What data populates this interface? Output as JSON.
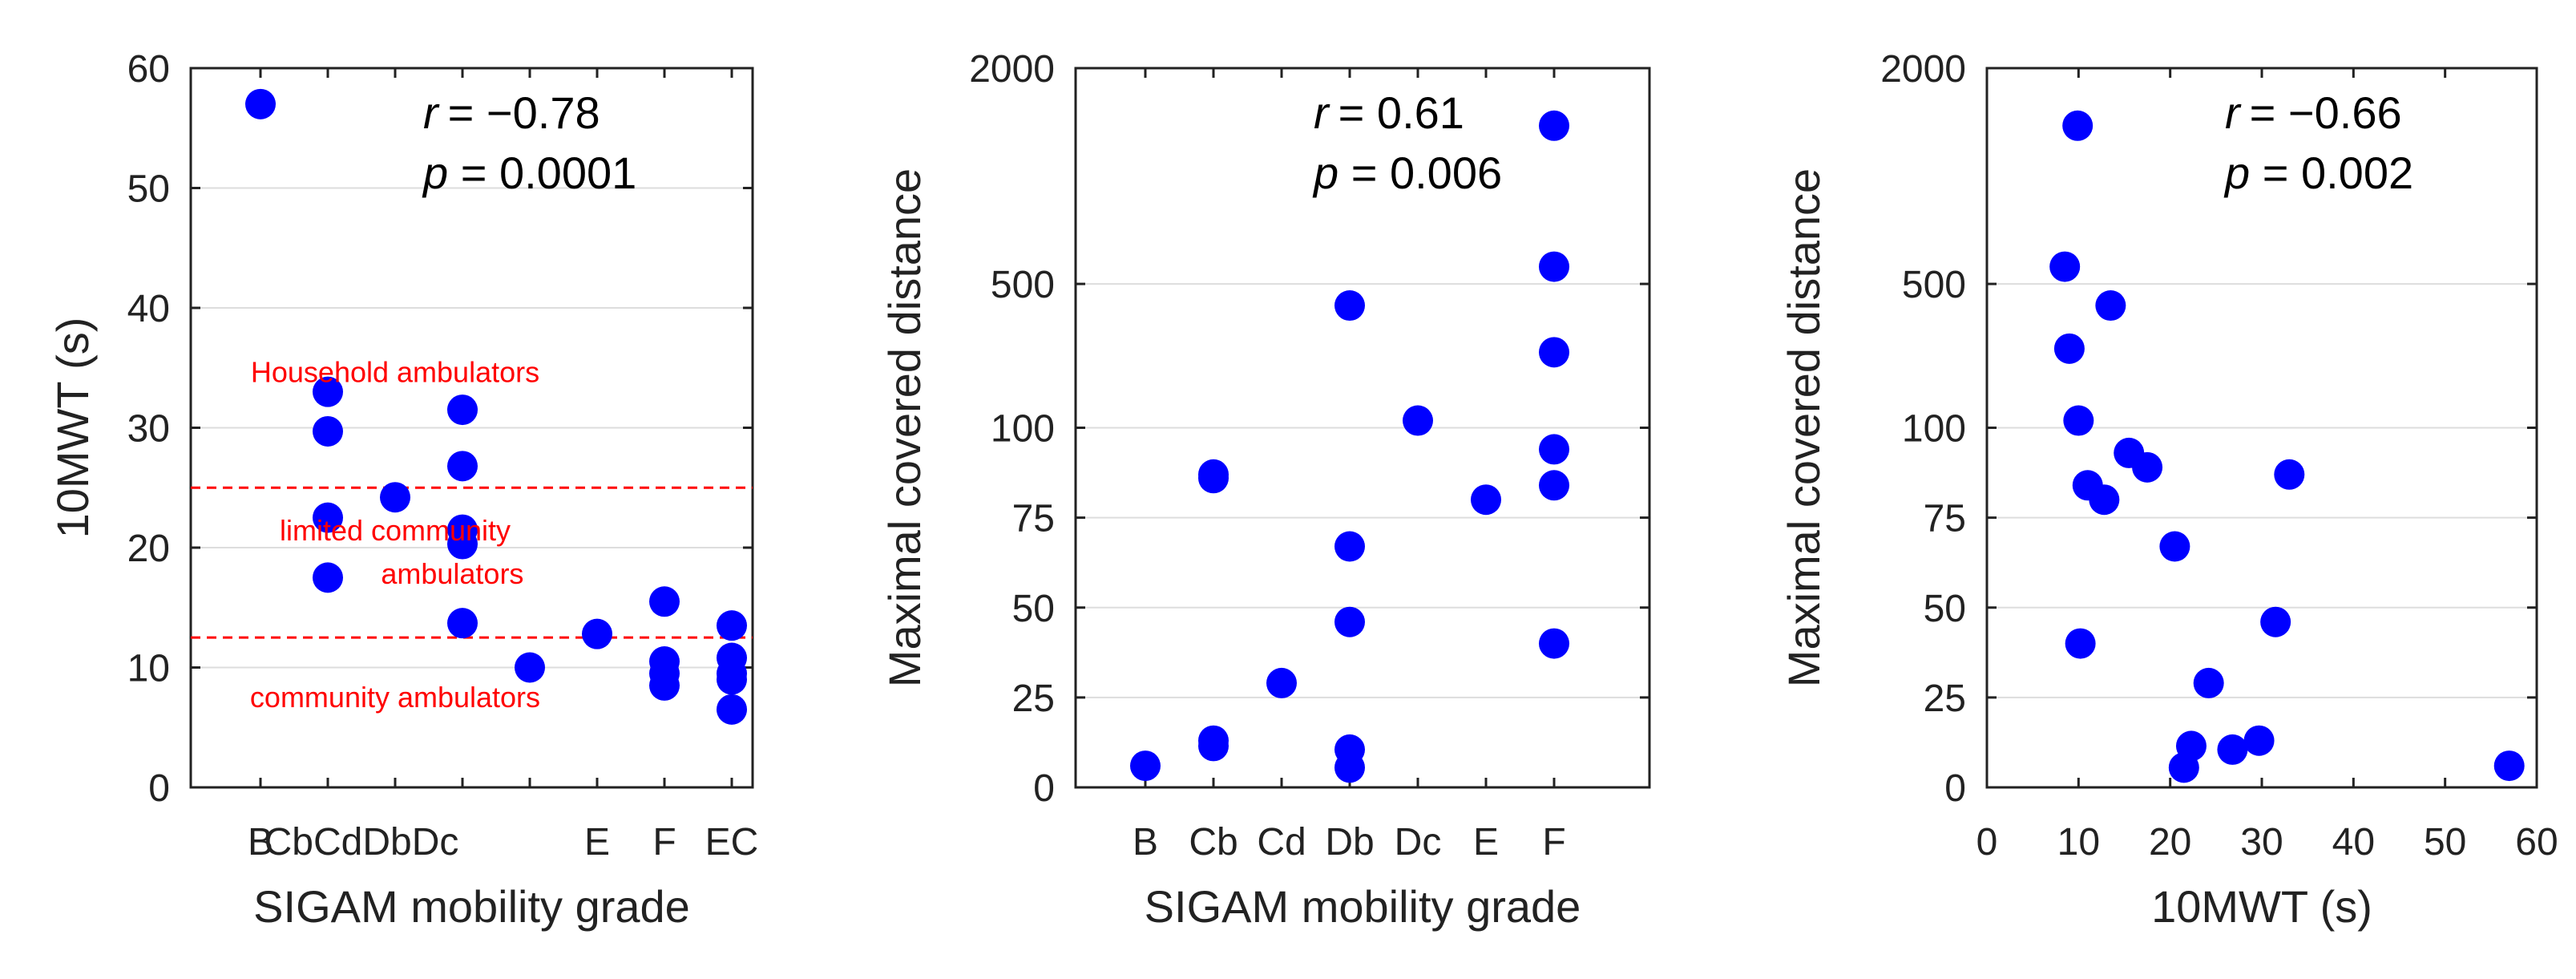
{
  "colors": {
    "point": "#0000ff",
    "threshold": "#ff0000",
    "grid": "#dddddd",
    "axis": "#222222"
  },
  "chart_data": [
    {
      "type": "scatter",
      "xlabel": "SIGAM mobility grade",
      "ylabel": "10MWT (s)",
      "categories": [
        "B",
        "Cb",
        "Cd",
        "Db",
        "Dc",
        "E",
        "F",
        "EC"
      ],
      "category_labels": [
        {
          "index": 0,
          "text": "B"
        },
        {
          "index": 1.5,
          "text": "CbCdDbDc"
        },
        {
          "index": 5,
          "text": "E"
        },
        {
          "index": 6,
          "text": "F"
        },
        {
          "index": 7,
          "text": "EC"
        }
      ],
      "yscale": "linear",
      "ylim": [
        0,
        60
      ],
      "yticks": [
        0,
        10,
        20,
        30,
        40,
        50,
        60
      ],
      "ytick_labels": [
        "0",
        "10",
        "20",
        "30",
        "40",
        "50",
        "60"
      ],
      "stats": {
        "r_symbol": "r",
        "r_value": "= −0.78",
        "p_symbol": "p",
        "p_value": " = 0.0001"
      },
      "thresholds": [
        25,
        12.5
      ],
      "annotations": [
        {
          "text": "Household ambulators",
          "x": 2.0,
          "y": 34.6
        },
        {
          "text": "limited community",
          "x": 2.0,
          "y": 21.4
        },
        {
          "text": "ambulators",
          "x": 2.85,
          "y": 17.8
        },
        {
          "text": "community ambulators",
          "x": 2.0,
          "y": 7.5
        }
      ],
      "points": [
        {
          "x": 0,
          "y": 57
        },
        {
          "x": 1,
          "y": 33
        },
        {
          "x": 1,
          "y": 29.7
        },
        {
          "x": 1,
          "y": 22.5
        },
        {
          "x": 1,
          "y": 17.5
        },
        {
          "x": 2,
          "y": 24.2
        },
        {
          "x": 3,
          "y": 31.5
        },
        {
          "x": 3,
          "y": 26.8
        },
        {
          "x": 3,
          "y": 21.5
        },
        {
          "x": 3,
          "y": 20.3
        },
        {
          "x": 3,
          "y": 13.7
        },
        {
          "x": 4,
          "y": 10
        },
        {
          "x": 5,
          "y": 12.8
        },
        {
          "x": 6,
          "y": 15.5
        },
        {
          "x": 6,
          "y": 10.5
        },
        {
          "x": 6,
          "y": 9.5
        },
        {
          "x": 6,
          "y": 8.5
        },
        {
          "x": 7,
          "y": 13.5
        },
        {
          "x": 7,
          "y": 10.8
        },
        {
          "x": 7,
          "y": 9.5
        },
        {
          "x": 7,
          "y": 9
        },
        {
          "x": 7,
          "y": 6.5
        }
      ]
    },
    {
      "type": "scatter",
      "xlabel": "SIGAM mobility grade",
      "ylabel": "Maximal covered distance",
      "categories": [
        "B",
        "Cb",
        "Cd",
        "Db",
        "Dc",
        "E",
        "F"
      ],
      "yscale": "piecewise",
      "ylim": [
        0,
        2000
      ],
      "yticks": [
        0,
        25,
        50,
        75,
        100,
        500,
        2000
      ],
      "ytick_labels": [
        "0",
        "25",
        "50",
        "75",
        "100",
        "500",
        "2000"
      ],
      "stats": {
        "r_symbol": "r",
        "r_value": "= 0.61",
        "p_symbol": "p",
        "p_value": " = 0.006"
      },
      "points": [
        {
          "x": 0,
          "y": 6
        },
        {
          "x": 1,
          "y": 87
        },
        {
          "x": 1,
          "y": 86
        },
        {
          "x": 1,
          "y": 13
        },
        {
          "x": 1,
          "y": 11.5
        },
        {
          "x": 2,
          "y": 29
        },
        {
          "x": 3,
          "y": 440
        },
        {
          "x": 3,
          "y": 67
        },
        {
          "x": 3,
          "y": 46
        },
        {
          "x": 3,
          "y": 10.5
        },
        {
          "x": 3,
          "y": 5.5
        },
        {
          "x": 4,
          "y": 120
        },
        {
          "x": 5,
          "y": 80
        },
        {
          "x": 6,
          "y": 1600
        },
        {
          "x": 6,
          "y": 620
        },
        {
          "x": 6,
          "y": 310
        },
        {
          "x": 6,
          "y": 94
        },
        {
          "x": 6,
          "y": 84
        },
        {
          "x": 6,
          "y": 40
        }
      ]
    },
    {
      "type": "scatter",
      "xlabel": "10MWT (s)",
      "ylabel": "Maximal covered distance",
      "xlim": [
        0,
        60
      ],
      "xticks": [
        0,
        10,
        20,
        30,
        40,
        50,
        60
      ],
      "xtick_labels": [
        "0",
        "10",
        "20",
        "30",
        "40",
        "50",
        "60"
      ],
      "yscale": "piecewise",
      "ylim": [
        0,
        2000
      ],
      "yticks": [
        0,
        25,
        50,
        75,
        100,
        500,
        2000
      ],
      "ytick_labels": [
        "0",
        "25",
        "50",
        "75",
        "100",
        "500",
        "2000"
      ],
      "stats": {
        "r_symbol": "r",
        "r_value": "= −0.66",
        "p_symbol": "p",
        "p_value": " = 0.002"
      },
      "points": [
        {
          "x": 9.9,
          "y": 1600
        },
        {
          "x": 8.5,
          "y": 620
        },
        {
          "x": 13.5,
          "y": 440
        },
        {
          "x": 9,
          "y": 320
        },
        {
          "x": 10,
          "y": 120
        },
        {
          "x": 15.5,
          "y": 93
        },
        {
          "x": 17.5,
          "y": 89
        },
        {
          "x": 33,
          "y": 87
        },
        {
          "x": 11,
          "y": 84
        },
        {
          "x": 12.8,
          "y": 80
        },
        {
          "x": 20.5,
          "y": 67
        },
        {
          "x": 31.5,
          "y": 46
        },
        {
          "x": 10.2,
          "y": 40
        },
        {
          "x": 24.2,
          "y": 29
        },
        {
          "x": 29.7,
          "y": 13
        },
        {
          "x": 22.3,
          "y": 11.5
        },
        {
          "x": 26.8,
          "y": 10.5
        },
        {
          "x": 21.5,
          "y": 5.5
        },
        {
          "x": 57,
          "y": 6
        }
      ]
    }
  ]
}
